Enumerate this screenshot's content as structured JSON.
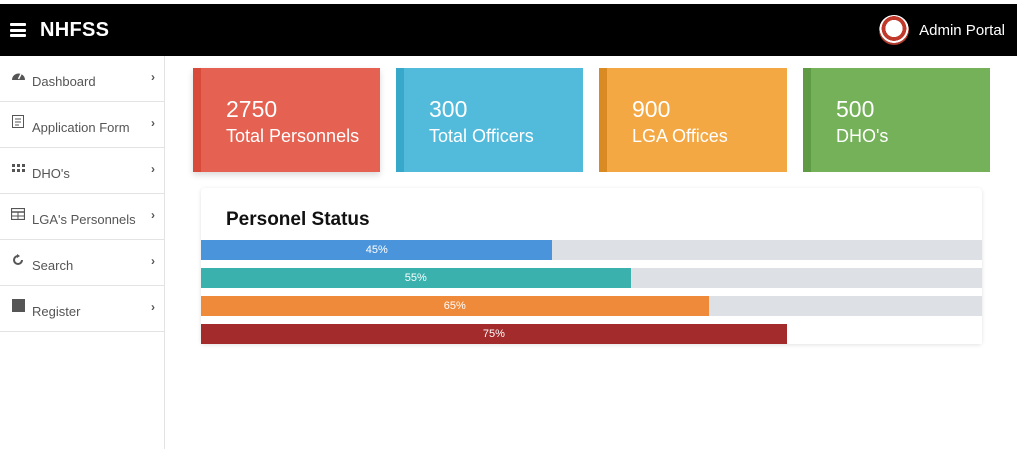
{
  "header": {
    "brand": "NHFSS",
    "portal_label": "Admin Portal"
  },
  "sidebar": {
    "items": [
      {
        "label": "Dashboard",
        "icon": "dashboard-icon"
      },
      {
        "label": "Application Form",
        "icon": "form-icon"
      },
      {
        "label": "DHO's",
        "icon": "grid-icon"
      },
      {
        "label": "LGA's Personnels",
        "icon": "table-icon"
      },
      {
        "label": "Search",
        "icon": "refresh-icon"
      },
      {
        "label": "Register",
        "icon": "square-icon"
      }
    ]
  },
  "stats": [
    {
      "value": "2750",
      "label": "Total Personnels",
      "color": "#e56151",
      "accent": "#d84a3a"
    },
    {
      "value": "300",
      "label": "Total Officers",
      "color": "#52bbdc",
      "accent": "#38a8ca"
    },
    {
      "value": "900",
      "label": "LGA Offices",
      "color": "#f3a843",
      "accent": "#d98a22"
    },
    {
      "value": "500",
      "label": "DHO's",
      "color": "#74b159",
      "accent": "#5e9b44"
    }
  ],
  "personnel_status": {
    "title": "Personel Status",
    "bars": [
      {
        "percent": 45,
        "text": "45%",
        "color": "#4a94dc"
      },
      {
        "percent": 55,
        "text": "55%",
        "color": "#3ab1ad"
      },
      {
        "percent": 65,
        "text": "65%",
        "color": "#ef8a3a"
      },
      {
        "percent": 75,
        "text": "75%",
        "color": "#a32b2b"
      }
    ]
  }
}
